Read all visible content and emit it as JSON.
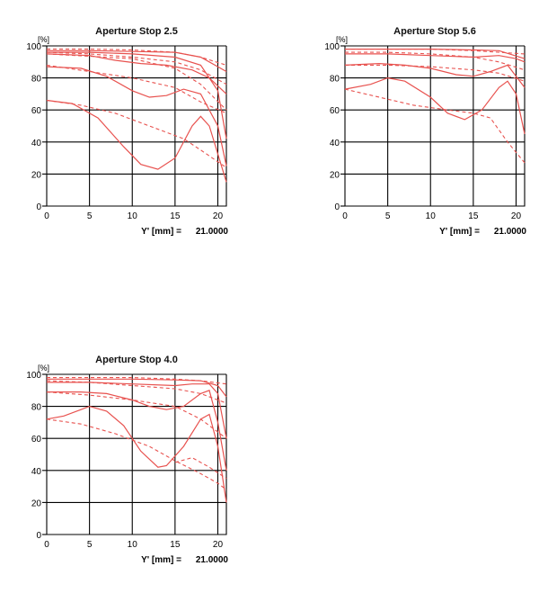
{
  "chart_data": [
    {
      "type": "line",
      "title": "Aperture Stop 2.5",
      "ylabel": "[%]",
      "footer_label": "Y' [mm] =",
      "footer_value": "21.0000",
      "xlim": [
        0,
        21
      ],
      "ylim": [
        0,
        100
      ],
      "x_ticks": [
        "0",
        "5",
        "10",
        "15",
        "20"
      ],
      "y_ticks": [
        "0",
        "20",
        "40",
        "60",
        "80",
        "100"
      ],
      "grid": true,
      "series": [
        {
          "style": "solid",
          "points": [
            [
              0,
              97
            ],
            [
              5,
              97
            ],
            [
              10,
              96.5
            ],
            [
              15,
              96
            ],
            [
              18,
              93
            ],
            [
              21,
              84
            ]
          ]
        },
        {
          "style": "dashed",
          "points": [
            [
              0,
              98
            ],
            [
              5,
              98
            ],
            [
              10,
              97.5
            ],
            [
              15,
              96
            ],
            [
              18,
              93
            ],
            [
              21,
              88
            ]
          ]
        },
        {
          "style": "solid",
          "points": [
            [
              0,
              95
            ],
            [
              5,
              94
            ],
            [
              8,
              91
            ],
            [
              11,
              89
            ],
            [
              14,
              88
            ],
            [
              17,
              85
            ],
            [
              19,
              80
            ],
            [
              21,
              70
            ]
          ]
        },
        {
          "style": "dashed",
          "points": [
            [
              0,
              96
            ],
            [
              5,
              95
            ],
            [
              10,
              93
            ],
            [
              15,
              90
            ],
            [
              18,
              85
            ],
            [
              21,
              76
            ]
          ]
        },
        {
          "style": "solid",
          "points": [
            [
              0,
              87
            ],
            [
              4,
              86
            ],
            [
              7,
              81
            ],
            [
              10,
              72
            ],
            [
              12,
              68
            ],
            [
              14,
              69
            ],
            [
              16,
              73
            ],
            [
              18,
              70
            ],
            [
              20,
              50
            ],
            [
              21,
              25
            ]
          ]
        },
        {
          "style": "dashed",
          "points": [
            [
              0,
              88
            ],
            [
              5,
              84
            ],
            [
              10,
              80
            ],
            [
              15,
              74
            ],
            [
              18,
              65
            ],
            [
              21,
              58
            ]
          ]
        },
        {
          "style": "solid",
          "points": [
            [
              0,
              66
            ],
            [
              3,
              64
            ],
            [
              6,
              55
            ],
            [
              9,
              37
            ],
            [
              11,
              26
            ],
            [
              13,
              23
            ],
            [
              15,
              30
            ],
            [
              17,
              50
            ],
            [
              18,
              56
            ],
            [
              19,
              50
            ],
            [
              21,
              15
            ]
          ]
        },
        {
          "style": "dashed",
          "points": [
            [
              0,
              66
            ],
            [
              4,
              63
            ],
            [
              8,
              58
            ],
            [
              12,
              50
            ],
            [
              16,
              42
            ],
            [
              18,
              35
            ],
            [
              21,
              24
            ]
          ]
        },
        {
          "style": "solid",
          "points": [
            [
              0,
              96
            ],
            [
              5,
              96
            ],
            [
              10,
              95
            ],
            [
              15,
              93
            ],
            [
              18,
              88
            ],
            [
              20,
              72
            ],
            [
              21,
              42
            ]
          ]
        },
        {
          "style": "dashed",
          "points": [
            [
              0,
              95
            ],
            [
              10,
              92
            ],
            [
              15,
              86
            ],
            [
              18,
              76
            ],
            [
              21,
              60
            ]
          ]
        }
      ]
    },
    {
      "type": "line",
      "title": "Aperture Stop 5.6",
      "ylabel": "[%]",
      "footer_label": "Y' [mm] =",
      "footer_value": "21.0000",
      "xlim": [
        0,
        21
      ],
      "ylim": [
        0,
        100
      ],
      "x_ticks": [
        "0",
        "5",
        "10",
        "15",
        "20"
      ],
      "y_ticks": [
        "0",
        "20",
        "40",
        "60",
        "80",
        "100"
      ],
      "grid": true,
      "series": [
        {
          "style": "solid",
          "points": [
            [
              0,
              98
            ],
            [
              5,
              98
            ],
            [
              10,
              98
            ],
            [
              15,
              97.5
            ],
            [
              18,
              97
            ],
            [
              21,
              92
            ]
          ]
        },
        {
          "style": "dashed",
          "points": [
            [
              0,
              98
            ],
            [
              10,
              98
            ],
            [
              15,
              97
            ],
            [
              18,
              96
            ],
            [
              21,
              95
            ]
          ]
        },
        {
          "style": "solid",
          "points": [
            [
              0,
              95
            ],
            [
              5,
              95
            ],
            [
              10,
              94
            ],
            [
              15,
              93
            ],
            [
              18,
              94
            ],
            [
              20,
              92
            ],
            [
              21,
              90
            ]
          ]
        },
        {
          "style": "dashed",
          "points": [
            [
              0,
              96
            ],
            [
              5,
              96
            ],
            [
              10,
              95
            ],
            [
              15,
              93
            ],
            [
              18,
              90
            ],
            [
              21,
              85
            ]
          ]
        },
        {
          "style": "solid",
          "points": [
            [
              0,
              88
            ],
            [
              4,
              89
            ],
            [
              7,
              88
            ],
            [
              10,
              86
            ],
            [
              13,
              82
            ],
            [
              15,
              81
            ],
            [
              17,
              84
            ],
            [
              19,
              88
            ],
            [
              21,
              74
            ]
          ]
        },
        {
          "style": "dashed",
          "points": [
            [
              0,
              88
            ],
            [
              5,
              88
            ],
            [
              10,
              87
            ],
            [
              15,
              85
            ],
            [
              18,
              83
            ],
            [
              21,
              78
            ]
          ]
        },
        {
          "style": "solid",
          "points": [
            [
              0,
              73
            ],
            [
              3,
              76
            ],
            [
              5,
              80
            ],
            [
              7,
              78
            ],
            [
              10,
              68
            ],
            [
              12,
              58
            ],
            [
              14,
              54
            ],
            [
              16,
              60
            ],
            [
              18,
              74
            ],
            [
              19,
              78
            ],
            [
              20,
              70
            ],
            [
              21,
              45
            ]
          ]
        },
        {
          "style": "dashed",
          "points": [
            [
              0,
              73
            ],
            [
              4,
              68
            ],
            [
              8,
              63
            ],
            [
              12,
              60
            ],
            [
              15,
              58
            ],
            [
              17,
              55
            ],
            [
              19,
              40
            ],
            [
              21,
              27
            ]
          ]
        }
      ]
    },
    {
      "type": "line",
      "title": "Aperture Stop 4.0",
      "ylabel": "[%]",
      "footer_label": "Y' [mm] =",
      "footer_value": "21.0000",
      "xlim": [
        0,
        21
      ],
      "ylim": [
        0,
        100
      ],
      "x_ticks": [
        "0",
        "5",
        "10",
        "15",
        "20"
      ],
      "y_ticks": [
        "0",
        "20",
        "40",
        "60",
        "80",
        "100"
      ],
      "grid": true,
      "series": [
        {
          "style": "solid",
          "points": [
            [
              0,
              97
            ],
            [
              5,
              97
            ],
            [
              10,
              97
            ],
            [
              15,
              96.5
            ],
            [
              18,
              96
            ],
            [
              20,
              93
            ],
            [
              21,
              86
            ]
          ]
        },
        {
          "style": "dashed",
          "points": [
            [
              0,
              98
            ],
            [
              10,
              98
            ],
            [
              15,
              97
            ],
            [
              18,
              96
            ],
            [
              21,
              94
            ]
          ]
        },
        {
          "style": "solid",
          "points": [
            [
              0,
              95
            ],
            [
              5,
              95
            ],
            [
              10,
              94
            ],
            [
              15,
              93
            ],
            [
              17,
              94
            ],
            [
              19,
              94
            ],
            [
              20,
              88
            ],
            [
              21,
              60
            ]
          ]
        },
        {
          "style": "dashed",
          "points": [
            [
              0,
              96
            ],
            [
              5,
              95
            ],
            [
              10,
              93
            ],
            [
              15,
              91
            ],
            [
              18,
              88
            ],
            [
              21,
              82
            ]
          ]
        },
        {
          "style": "solid",
          "points": [
            [
              0,
              89
            ],
            [
              4,
              89
            ],
            [
              7,
              88
            ],
            [
              10,
              84
            ],
            [
              12,
              80
            ],
            [
              14,
              78
            ],
            [
              16,
              80
            ],
            [
              18,
              88
            ],
            [
              19,
              90
            ],
            [
              20,
              70
            ],
            [
              21,
              40
            ]
          ]
        },
        {
          "style": "dashed",
          "points": [
            [
              0,
              89
            ],
            [
              5,
              87
            ],
            [
              10,
              84
            ],
            [
              15,
              80
            ],
            [
              18,
              72
            ],
            [
              21,
              60
            ]
          ]
        },
        {
          "style": "solid",
          "points": [
            [
              0,
              72
            ],
            [
              2,
              74
            ],
            [
              4,
              78
            ],
            [
              5,
              80
            ],
            [
              7,
              77
            ],
            [
              9,
              68
            ],
            [
              11,
              52
            ],
            [
              13,
              42
            ],
            [
              14,
              43
            ],
            [
              16,
              55
            ],
            [
              18,
              72
            ],
            [
              19,
              75
            ],
            [
              20,
              55
            ],
            [
              21,
              20
            ]
          ]
        },
        {
          "style": "dashed",
          "points": [
            [
              0,
              72
            ],
            [
              4,
              69
            ],
            [
              8,
              63
            ],
            [
              12,
              55
            ],
            [
              15,
              46
            ],
            [
              18,
              38
            ],
            [
              20,
              32
            ],
            [
              21,
              28
            ]
          ]
        },
        {
          "style": "dashed",
          "points": [
            [
              15,
              45
            ],
            [
              17,
              48
            ],
            [
              19,
              42
            ],
            [
              21,
              35
            ]
          ]
        }
      ]
    }
  ]
}
